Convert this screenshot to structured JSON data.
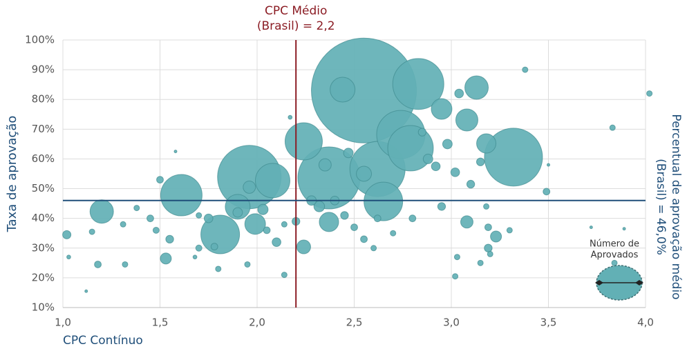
{
  "chart_data": {
    "type": "scatter",
    "x_label": "CPC Contínuo",
    "y_label": "Taxa de aprovação",
    "xlim": [
      1,
      4
    ],
    "ylim": [
      10,
      100
    ],
    "xticks": [
      {
        "value": 1,
        "label": "1,0"
      },
      {
        "value": 1.5,
        "label": "1,5"
      },
      {
        "value": 2,
        "label": "2,0"
      },
      {
        "value": 2.5,
        "label": "2,5"
      },
      {
        "value": 3,
        "label": "3,0"
      },
      {
        "value": 3.5,
        "label": "3,5"
      },
      {
        "value": 4,
        "label": "4,0"
      }
    ],
    "yticks": [
      {
        "value": 10,
        "label": "10%"
      },
      {
        "value": 20,
        "label": "20%"
      },
      {
        "value": 30,
        "label": "30%"
      },
      {
        "value": 40,
        "label": "40%"
      },
      {
        "value": 50,
        "label": "50%"
      },
      {
        "value": 60,
        "label": "60%"
      },
      {
        "value": 70,
        "label": "70%"
      },
      {
        "value": 80,
        "label": "80%"
      },
      {
        "value": 90,
        "label": "90%"
      },
      {
        "value": 100,
        "label": "100%"
      }
    ],
    "grid": true,
    "vline": {
      "value": 2.2,
      "label": [
        "CPC Médio",
        "(Brasil) = 2,2"
      ],
      "color": "#8b1c24"
    },
    "hline": {
      "value": 46,
      "label": [
        "Percentual de aprovação médio",
        "(Brasil) = 46,0%"
      ],
      "color": "#1f4e79"
    },
    "size_legend": {
      "title": [
        "Número de",
        "Aprovados"
      ],
      "corner": "bottom-right"
    },
    "series": [
      {
        "color": "#62b0b5",
        "x": [
          2.55,
          1.96,
          2.37,
          3.32,
          2.62,
          2.83,
          2.74,
          2.79,
          1.61,
          2.65,
          1.81,
          2.24,
          2.08,
          1.9,
          2.44,
          1.2,
          3.13,
          3.08,
          1.99,
          2.95,
          3.18,
          2.37,
          2.55,
          2.24,
          2.35,
          1.96,
          1.53,
          3.23,
          3.08,
          2.32,
          2.03,
          2.28,
          2.47,
          2.88,
          2.98,
          1.9,
          2.92,
          3.02,
          3.04,
          1.75,
          2.4,
          2.1,
          1.02,
          1.55,
          2.2,
          2.45,
          2.85,
          2.95,
          3.1,
          3.15,
          3.19,
          1.45,
          1.5,
          1.18,
          2.05,
          2.5,
          2.55,
          2.62,
          2.8,
          1.78,
          1.48,
          1.7,
          3.49,
          3.19,
          1.15,
          1.32,
          1.38,
          1.31,
          1.8,
          1.95,
          2.14,
          2.6,
          2.7,
          3.18,
          3.2,
          3.15,
          3.02,
          3.03,
          3.3,
          3.38,
          3.83,
          3.84,
          4.02,
          2.14,
          1.7,
          1.03,
          1.12,
          1.58,
          2.17,
          3.5,
          3.72,
          3.89,
          1.68
        ],
        "values": [
          83,
          53.9,
          53.6,
          60.6,
          56.6,
          85.2,
          68.2,
          63.6,
          47.8,
          45.7,
          34.6,
          65.9,
          52.7,
          43.9,
          83.3,
          42.3,
          84,
          73.1,
          38.1,
          76.8,
          65.2,
          38.8,
          55,
          30.4,
          58,
          50.5,
          26.5,
          33.9,
          38.8,
          44,
          43,
          46,
          62,
          60,
          65,
          42,
          57.5,
          55.5,
          82,
          40,
          46,
          32,
          34.5,
          33,
          39,
          41,
          69,
          44,
          51.5,
          59,
          37,
          40,
          53,
          24.5,
          36,
          37,
          33,
          40,
          40,
          30.5,
          36,
          30,
          49,
          30,
          35.5,
          24.5,
          43.5,
          38,
          23,
          24.5,
          21,
          30,
          35,
          44,
          28,
          25,
          20.5,
          27,
          36,
          90,
          70.5,
          25,
          82,
          38,
          41,
          27,
          15.5,
          62.5,
          74,
          58,
          37,
          36.5,
          27
        ],
        "sizes": [
          1444,
          529,
          506,
          441,
          400,
          342,
          306,
          272,
          225,
          196,
          196,
          182,
          156,
          81,
          81,
          72,
          72,
          64,
          56,
          56,
          49,
          49,
          30,
          25,
          20,
          20,
          16,
          16,
          20,
          15,
          14,
          12,
          12,
          12,
          12,
          12,
          10,
          10,
          10,
          10,
          10,
          10,
          9,
          8,
          8,
          8,
          8,
          8,
          8,
          8,
          6,
          6,
          6,
          6,
          6,
          6,
          6,
          6,
          6,
          6,
          5,
          5,
          6,
          8,
          4,
          4,
          4,
          4,
          4,
          4,
          4,
          4,
          4,
          4,
          4,
          4,
          4,
          4,
          4,
          4,
          4,
          4,
          4,
          4,
          4,
          2,
          1,
          1,
          2,
          1,
          1,
          1,
          2
        ]
      }
    ]
  }
}
